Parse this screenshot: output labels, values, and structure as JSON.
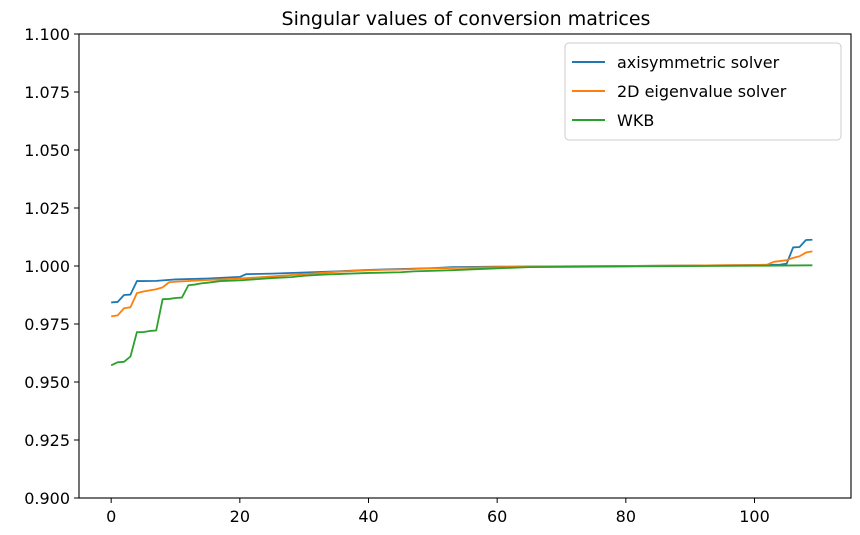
{
  "chart_data": {
    "type": "line",
    "title": "Singular values of conversion matrices",
    "xlabel": "",
    "ylabel": "",
    "xlim": [
      -5,
      115
    ],
    "ylim": [
      0.9,
      1.1
    ],
    "x_ticks": [
      0,
      20,
      40,
      60,
      80,
      100
    ],
    "y_ticks": [
      0.9,
      0.925,
      0.95,
      0.975,
      1.0,
      1.025,
      1.05,
      1.075,
      1.1
    ],
    "x_tick_labels": [
      "0",
      "20",
      "40",
      "60",
      "80",
      "100"
    ],
    "y_tick_labels": [
      "0.900",
      "0.925",
      "0.950",
      "0.975",
      "1.000",
      "1.025",
      "1.050",
      "1.075",
      "1.100"
    ],
    "grid": false,
    "legend_position": "top-right",
    "series": [
      {
        "name": "axisymmetric solver",
        "color": "#1f77b4",
        "points": [
          [
            0,
            0.9843
          ],
          [
            1,
            0.9845
          ],
          [
            2,
            0.9875
          ],
          [
            3,
            0.9877
          ],
          [
            4,
            0.9935
          ],
          [
            5,
            0.9935
          ],
          [
            7,
            0.9936
          ],
          [
            8,
            0.9938
          ],
          [
            10,
            0.9942
          ],
          [
            15,
            0.9946
          ],
          [
            20,
            0.9953
          ],
          [
            21,
            0.9965
          ],
          [
            25,
            0.9967
          ],
          [
            30,
            0.9972
          ],
          [
            35,
            0.9977
          ],
          [
            40,
            0.9983
          ],
          [
            45,
            0.9987
          ],
          [
            50,
            0.9991
          ],
          [
            53,
            0.9995
          ],
          [
            60,
            0.9997
          ],
          [
            70,
            0.9999
          ],
          [
            80,
            1.0
          ],
          [
            90,
            1.0002
          ],
          [
            100,
            1.0004
          ],
          [
            104,
            1.0006
          ],
          [
            105,
            1.001
          ],
          [
            106,
            1.008
          ],
          [
            107,
            1.0082
          ],
          [
            108,
            1.0112
          ],
          [
            109,
            1.0113
          ]
        ]
      },
      {
        "name": "2D eigenvalue solver",
        "color": "#ff7f0e",
        "points": [
          [
            0,
            0.9783
          ],
          [
            1,
            0.9787
          ],
          [
            2,
            0.9818
          ],
          [
            3,
            0.9822
          ],
          [
            4,
            0.9883
          ],
          [
            5,
            0.989
          ],
          [
            7,
            0.99
          ],
          [
            8,
            0.9908
          ],
          [
            9,
            0.993
          ],
          [
            10,
            0.9932
          ],
          [
            15,
            0.994
          ],
          [
            20,
            0.9946
          ],
          [
            25,
            0.9955
          ],
          [
            30,
            0.9965
          ],
          [
            35,
            0.9975
          ],
          [
            40,
            0.9982
          ],
          [
            45,
            0.9985
          ],
          [
            50,
            0.999
          ],
          [
            60,
            0.9995
          ],
          [
            70,
            0.9998
          ],
          [
            80,
            1.0
          ],
          [
            90,
            1.0002
          ],
          [
            100,
            1.0004
          ],
          [
            102,
            1.0006
          ],
          [
            103,
            1.0018
          ],
          [
            105,
            1.0025
          ],
          [
            106,
            1.0035
          ],
          [
            107,
            1.0042
          ],
          [
            108,
            1.0058
          ],
          [
            109,
            1.0063
          ]
        ]
      },
      {
        "name": "WKB",
        "color": "#2ca02c",
        "points": [
          [
            0,
            0.9572
          ],
          [
            1,
            0.9585
          ],
          [
            2,
            0.9587
          ],
          [
            3,
            0.961
          ],
          [
            4,
            0.9715
          ],
          [
            5,
            0.9715
          ],
          [
            6,
            0.972
          ],
          [
            7,
            0.9722
          ],
          [
            8,
            0.9857
          ],
          [
            9,
            0.9858
          ],
          [
            10,
            0.9862
          ],
          [
            11,
            0.9864
          ],
          [
            12,
            0.9917
          ],
          [
            13,
            0.992
          ],
          [
            14,
            0.9925
          ],
          [
            15,
            0.9928
          ],
          [
            17,
            0.9935
          ],
          [
            20,
            0.9938
          ],
          [
            22,
            0.9942
          ],
          [
            25,
            0.9948
          ],
          [
            28,
            0.9952
          ],
          [
            30,
            0.9958
          ],
          [
            33,
            0.9963
          ],
          [
            40,
            0.997
          ],
          [
            45,
            0.9973
          ],
          [
            47,
            0.9977
          ],
          [
            53,
            0.9982
          ],
          [
            60,
            0.999
          ],
          [
            65,
            0.9995
          ],
          [
            80,
            0.9998
          ],
          [
            100,
            1.0001
          ],
          [
            109,
            1.0003
          ]
        ]
      }
    ]
  }
}
